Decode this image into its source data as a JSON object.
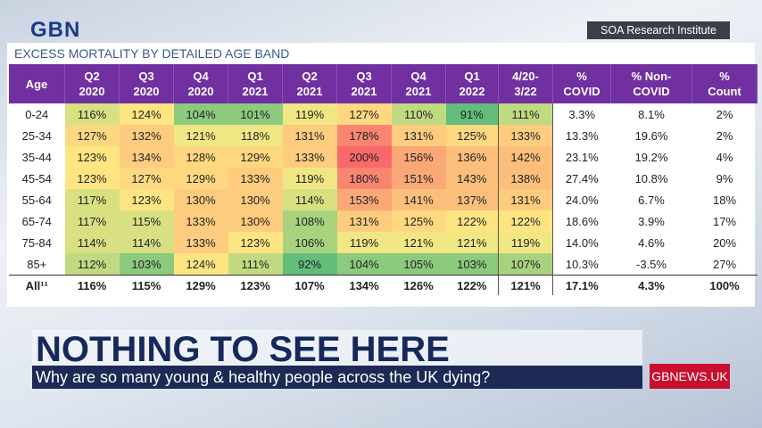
{
  "header": {
    "logo": "GBN",
    "source": "SOA Research Institute"
  },
  "table": {
    "title": "EXCESS MORTALITY BY DETAILED AGE BAND",
    "columns": [
      [
        "Age"
      ],
      [
        "Q2",
        "2020"
      ],
      [
        "Q3",
        "2020"
      ],
      [
        "Q4",
        "2020"
      ],
      [
        "Q1",
        "2021"
      ],
      [
        "Q2",
        "2021"
      ],
      [
        "Q3",
        "2021"
      ],
      [
        "Q4",
        "2021"
      ],
      [
        "Q1",
        "2022"
      ],
      [
        "4/20-",
        "3/22"
      ],
      [
        "%",
        "COVID"
      ],
      [
        "% Non-",
        "COVID"
      ],
      [
        "%",
        "Count"
      ]
    ],
    "rows": [
      [
        "0-24",
        "116%",
        "124%",
        "104%",
        "101%",
        "119%",
        "127%",
        "110%",
        "91%",
        "111%",
        "3.3%",
        "8.1%",
        "2%"
      ],
      [
        "25-34",
        "127%",
        "132%",
        "121%",
        "118%",
        "131%",
        "178%",
        "131%",
        "125%",
        "133%",
        "13.3%",
        "19.6%",
        "2%"
      ],
      [
        "35-44",
        "123%",
        "134%",
        "128%",
        "129%",
        "133%",
        "200%",
        "156%",
        "136%",
        "142%",
        "23.1%",
        "19.2%",
        "4%"
      ],
      [
        "45-54",
        "123%",
        "127%",
        "129%",
        "133%",
        "119%",
        "180%",
        "151%",
        "143%",
        "138%",
        "27.4%",
        "10.8%",
        "9%"
      ],
      [
        "55-64",
        "117%",
        "123%",
        "130%",
        "130%",
        "114%",
        "153%",
        "141%",
        "137%",
        "131%",
        "24.0%",
        "6.7%",
        "18%"
      ],
      [
        "65-74",
        "117%",
        "115%",
        "133%",
        "130%",
        "108%",
        "131%",
        "125%",
        "122%",
        "122%",
        "18.6%",
        "3.9%",
        "17%"
      ],
      [
        "75-84",
        "114%",
        "114%",
        "133%",
        "123%",
        "106%",
        "119%",
        "121%",
        "121%",
        "119%",
        "14.0%",
        "4.6%",
        "20%"
      ],
      [
        "85+",
        "112%",
        "103%",
        "124%",
        "111%",
        "92%",
        "104%",
        "105%",
        "103%",
        "107%",
        "10.3%",
        "-3.5%",
        "27%"
      ]
    ],
    "total": [
      "All¹¹",
      "116%",
      "115%",
      "129%",
      "123%",
      "107%",
      "134%",
      "126%",
      "122%",
      "121%",
      "17.1%",
      "4.3%",
      "100%"
    ],
    "cell_colors": [
      [
        "#d8e082",
        "#fee582",
        "#8cca7e",
        "#8cca7e",
        "#f0e784",
        "#fed880",
        "#c1da81",
        "#63be7b",
        "#c1da81"
      ],
      [
        "#fed880",
        "#fdcc7e",
        "#f0e784",
        "#f0e784",
        "#fdcc7e",
        "#f98570",
        "#fdcc7e",
        "#fed880",
        "#fdcc7e"
      ],
      [
        "#fee582",
        "#fdcc7e",
        "#fed880",
        "#fed880",
        "#fdcc7e",
        "#f8696b",
        "#fba877",
        "#fcbf7b",
        "#fcbf7b"
      ],
      [
        "#fee582",
        "#fed880",
        "#fed880",
        "#fdcc7e",
        "#f0e784",
        "#f98570",
        "#fba877",
        "#fcbf7b",
        "#fcbf7b"
      ],
      [
        "#d8e082",
        "#fee582",
        "#fdcc7e",
        "#fdcc7e",
        "#d8e082",
        "#fba877",
        "#fcbf7b",
        "#fcbf7b",
        "#fdcc7e"
      ],
      [
        "#d8e082",
        "#d8e082",
        "#fdcc7e",
        "#fdcc7e",
        "#a9d27f",
        "#fdcc7e",
        "#fed880",
        "#fee582",
        "#fee582"
      ],
      [
        "#d8e082",
        "#d8e082",
        "#fdcc7e",
        "#fee582",
        "#a9d27f",
        "#f0e784",
        "#f0e784",
        "#f0e784",
        "#f0e784"
      ],
      [
        "#c1da81",
        "#8cca7e",
        "#fee582",
        "#c1da81",
        "#63be7b",
        "#8cca7e",
        "#8cca7e",
        "#8cca7e",
        "#a9d27f"
      ]
    ]
  },
  "banner": {
    "headline": "NOTHING TO SEE HERE",
    "subheadline": "Why are so many young & healthy people across the UK dying?",
    "url": "GBNEWS.UK"
  }
}
